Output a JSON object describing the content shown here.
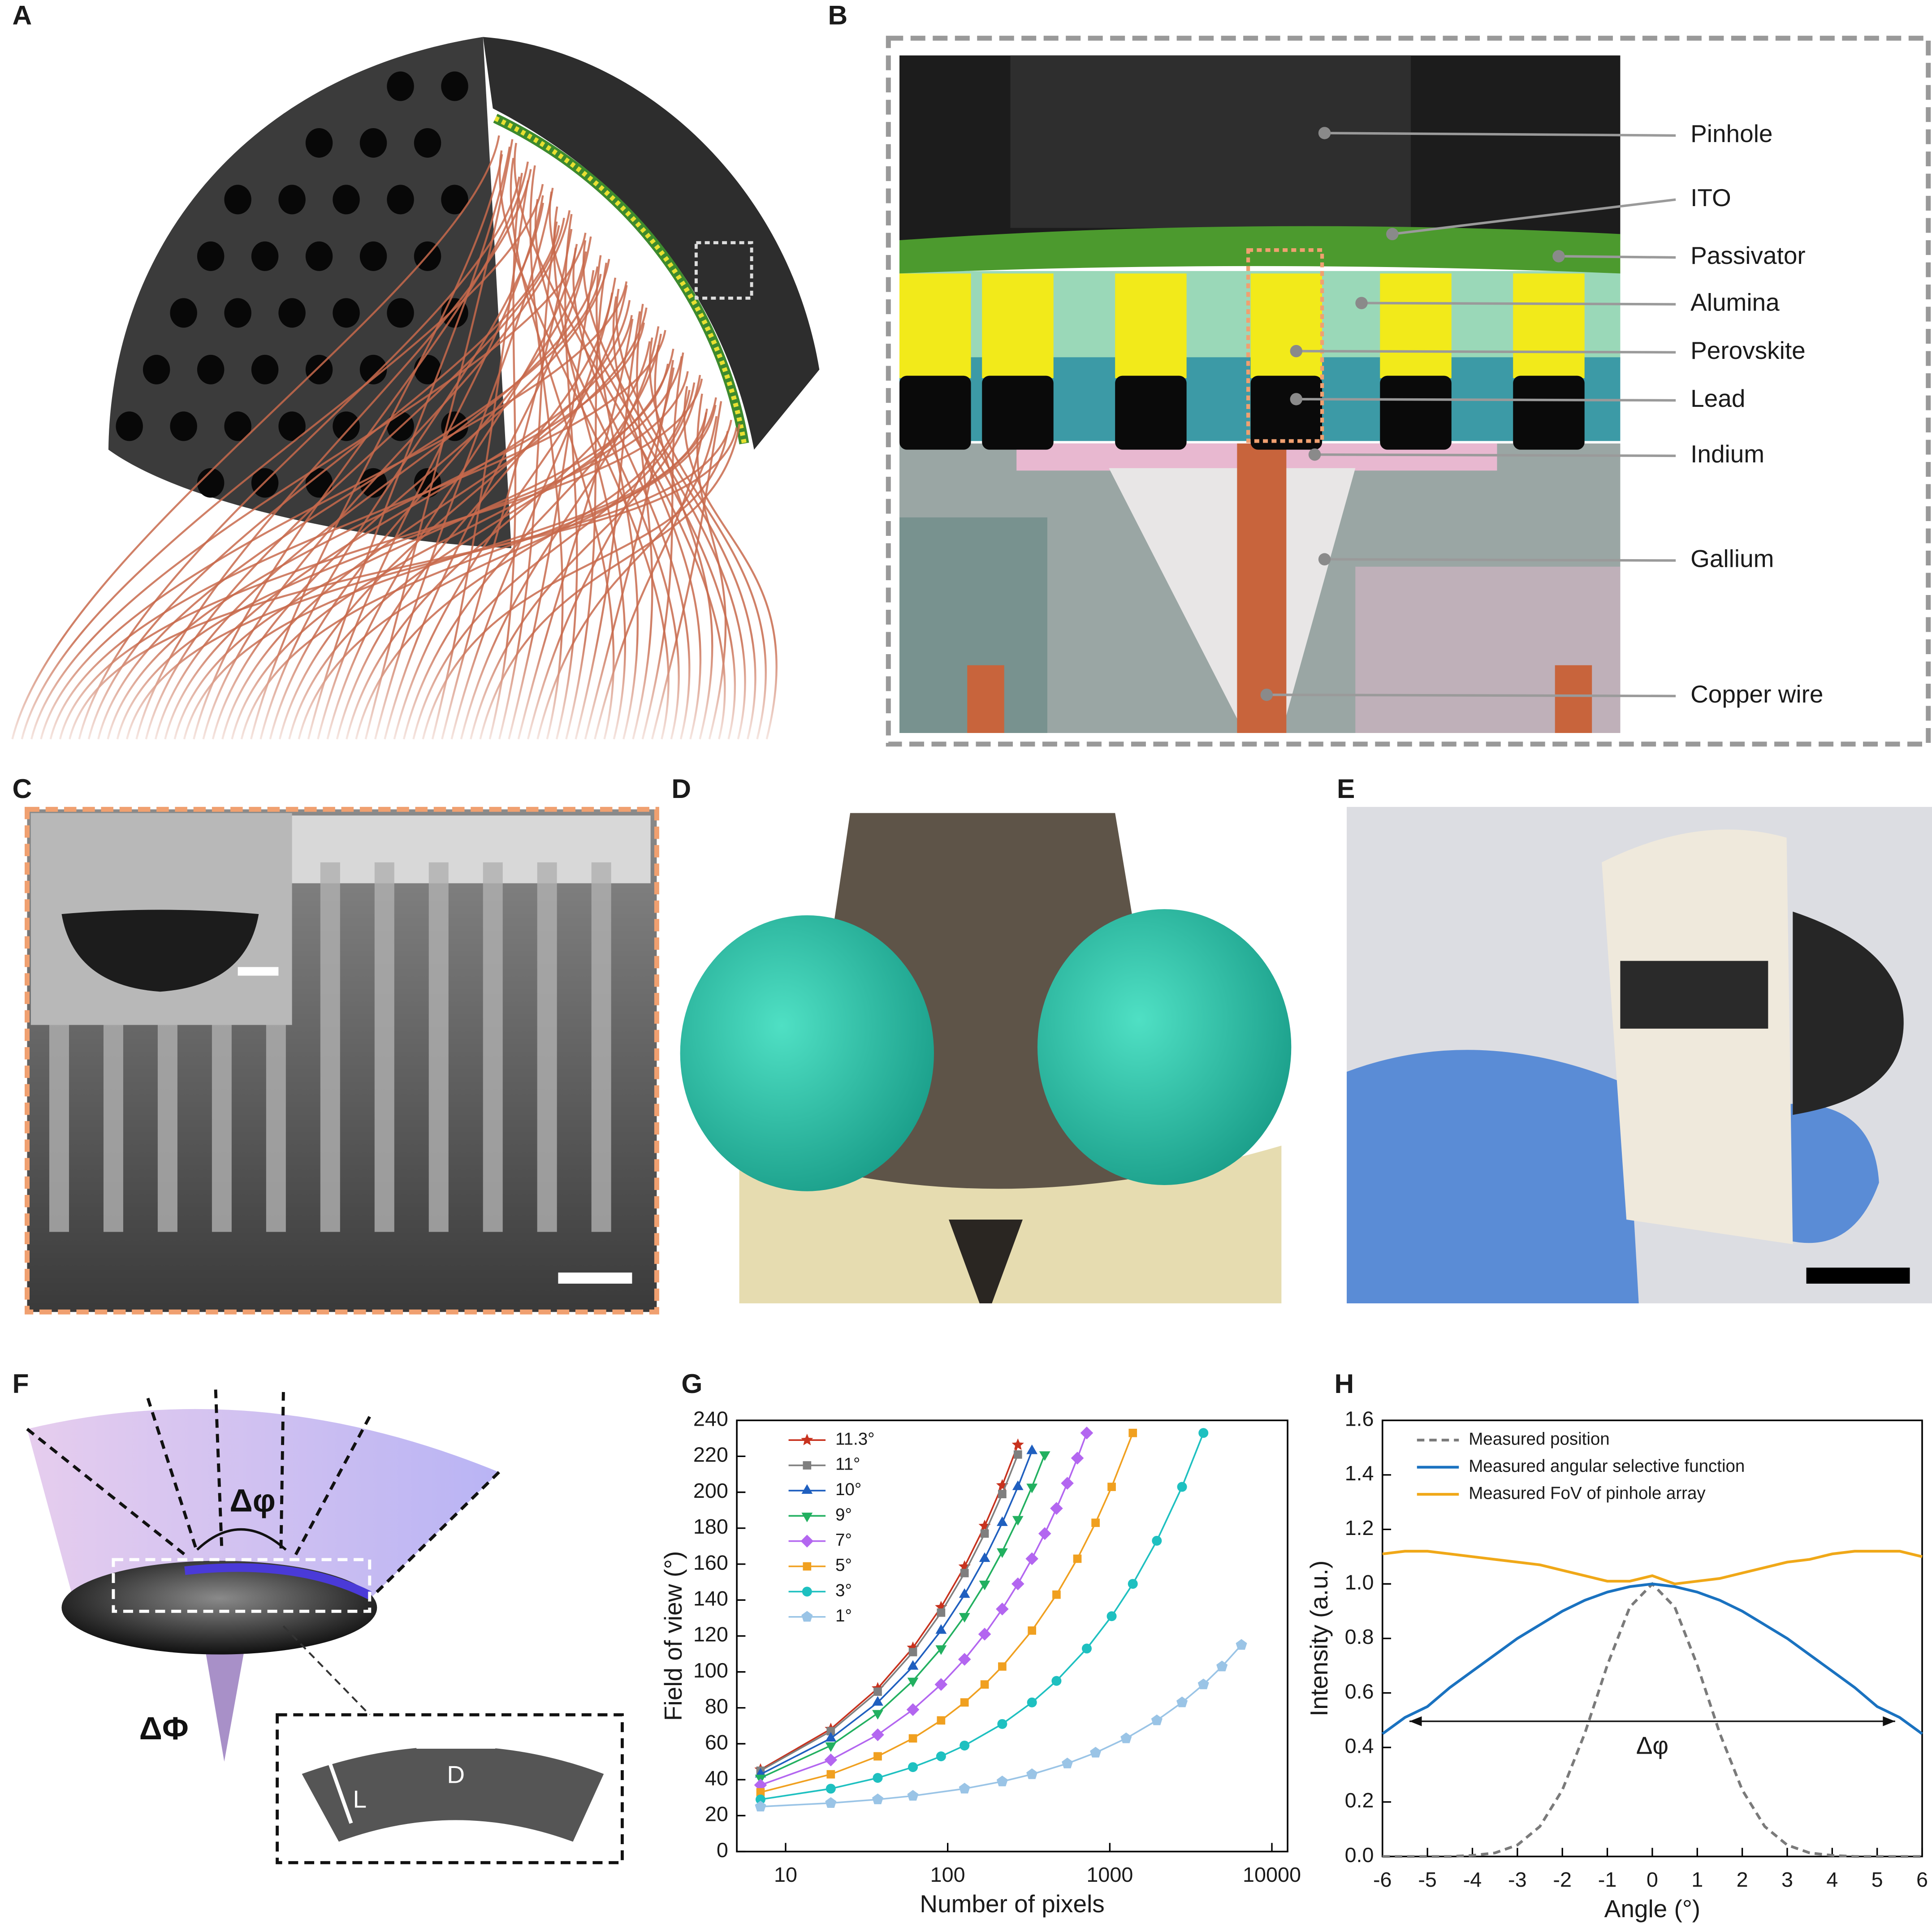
{
  "panel_labels": [
    "A",
    "B",
    "C",
    "D",
    "E",
    "F",
    "G",
    "H"
  ],
  "panel_b": {
    "labels": [
      "Pinhole",
      "ITO",
      "Passivator",
      "Alumina",
      "Perovskite",
      "Lead",
      "Indium",
      "Gallium",
      "Copper wire"
    ]
  },
  "panel_f": {
    "labels": [
      "Δφ",
      "ΔΦ",
      "L",
      "D"
    ]
  },
  "chart_data": [
    {
      "type": "line",
      "x_label": "Number of pixels",
      "y_label": "Field of view (°)",
      "xscale": "log",
      "xlim": [
        5,
        12500
      ],
      "xticks": [
        10,
        100,
        1000,
        10000
      ],
      "ylim": [
        0,
        240
      ],
      "yticks": [
        0,
        20,
        40,
        60,
        80,
        100,
        120,
        140,
        160,
        180,
        200,
        220,
        240
      ],
      "grid": false,
      "legend": "upper left",
      "series": [
        {
          "name": "11.3°",
          "color": "#c8321e",
          "marker": "star",
          "x": [
            7,
            19,
            37,
            61,
            91,
            127,
            169,
            217,
            271
          ],
          "values": [
            45.6,
            68.2,
            90.8,
            113.4,
            136,
            158.6,
            181.2,
            203.8,
            226.4
          ]
        },
        {
          "name": "11°",
          "color": "#7f7f7f",
          "marker": "square",
          "x": [
            7,
            19,
            37,
            61,
            91,
            127,
            169,
            217,
            271
          ],
          "values": [
            45,
            67,
            89,
            111,
            133,
            155,
            177,
            199,
            221
          ]
        },
        {
          "name": "10°",
          "color": "#1f5fbf",
          "marker": "triangle-up",
          "x": [
            7,
            19,
            37,
            61,
            91,
            127,
            169,
            217,
            271,
            331
          ],
          "values": [
            43,
            63,
            83,
            103,
            123,
            143,
            163,
            183,
            203,
            223
          ]
        },
        {
          "name": "9°",
          "color": "#22b060",
          "marker": "triangle-down",
          "x": [
            7,
            19,
            37,
            61,
            91,
            127,
            169,
            217,
            271,
            331,
            397
          ],
          "values": [
            41,
            59,
            77,
            95,
            113,
            131,
            149,
            167,
            185,
            203,
            221
          ]
        },
        {
          "name": "7°",
          "color": "#b366f0",
          "marker": "diamond",
          "x": [
            7,
            19,
            37,
            61,
            91,
            127,
            169,
            217,
            271,
            331,
            397,
            469,
            547,
            631,
            721
          ],
          "values": [
            37,
            51,
            65,
            79,
            93,
            107,
            121,
            135,
            149,
            163,
            177,
            191,
            205,
            219,
            233
          ]
        },
        {
          "name": "5°",
          "color": "#f0a020",
          "marker": "square",
          "x": [
            7,
            19,
            37,
            61,
            91,
            127,
            169,
            217,
            331,
            469,
            631,
            817,
            1027,
            1387
          ],
          "values": [
            33,
            43,
            53,
            63,
            73,
            83,
            93,
            103,
            123,
            143,
            163,
            183,
            203,
            233
          ]
        },
        {
          "name": "3°",
          "color": "#1ec0c0",
          "marker": "circle",
          "x": [
            7,
            19,
            37,
            61,
            91,
            127,
            217,
            331,
            469,
            721,
            1027,
            1387,
            1951,
            2791,
            3781
          ],
          "values": [
            29,
            35,
            41,
            47,
            53,
            59,
            71,
            83,
            95,
            113,
            131,
            149,
            173,
            203,
            233
          ]
        },
        {
          "name": "1°",
          "color": "#9ac4e6",
          "marker": "pentagon",
          "x": [
            7,
            19,
            37,
            61,
            127,
            217,
            331,
            547,
            817,
            1261,
            1951,
            2791,
            3781,
            4921,
            6487
          ],
          "values": [
            25,
            27,
            29,
            31,
            35,
            39,
            43,
            49,
            55,
            63,
            73,
            83,
            93,
            103,
            115
          ]
        }
      ]
    },
    {
      "type": "line",
      "x_label": "Angle (°)",
      "y_label": "Intensity (a.u.)",
      "xlim": [
        -6,
        6
      ],
      "xticks": [
        -6,
        -5,
        -4,
        -3,
        -2,
        -1,
        0,
        1,
        2,
        3,
        4,
        5,
        6
      ],
      "ylim": [
        0,
        1.6
      ],
      "yticks": [
        {
          "value": 0,
          "label": "0.0"
        },
        0.2,
        0.4,
        0.6,
        0.8,
        {
          "value": 1,
          "label": "1.0"
        },
        1.2,
        1.4,
        1.6
      ],
      "grid": false,
      "legend": "upper left",
      "annotation": "Δφ",
      "x": [
        -6,
        -5.5,
        -5,
        -4.5,
        -4,
        -3.5,
        -3,
        -2.5,
        -2,
        -1.5,
        -1,
        -0.5,
        0,
        0.5,
        1,
        1.5,
        2,
        2.5,
        3,
        3.5,
        4,
        4.5,
        5,
        5.5,
        6
      ],
      "series": [
        {
          "name": "Measured position",
          "color": "#7a7a7a",
          "linestyle": "dashed",
          "values": [
            0,
            0,
            0,
            0,
            0.004,
            0.013,
            0.042,
            0.11,
            0.244,
            0.452,
            0.702,
            0.915,
            1.0,
            0.915,
            0.702,
            0.452,
            0.244,
            0.11,
            0.042,
            0.013,
            0.004,
            0,
            0,
            0,
            0
          ]
        },
        {
          "name": "Measured angular selective function",
          "color": "#1a72c0",
          "linestyle": "solid",
          "values": [
            0.45,
            0.51,
            0.55,
            0.62,
            0.68,
            0.74,
            0.8,
            0.85,
            0.9,
            0.94,
            0.97,
            0.99,
            1.0,
            0.99,
            0.97,
            0.94,
            0.9,
            0.85,
            0.8,
            0.74,
            0.68,
            0.62,
            0.55,
            0.51,
            0.45
          ]
        },
        {
          "name": "Measured FoV of pinhole array",
          "color": "#f0a818",
          "linestyle": "solid",
          "values": [
            1.11,
            1.12,
            1.12,
            1.11,
            1.1,
            1.09,
            1.08,
            1.07,
            1.05,
            1.03,
            1.01,
            1.01,
            1.03,
            1.0,
            1.01,
            1.02,
            1.04,
            1.06,
            1.08,
            1.09,
            1.11,
            1.12,
            1.12,
            1.12,
            1.1
          ]
        }
      ]
    }
  ]
}
